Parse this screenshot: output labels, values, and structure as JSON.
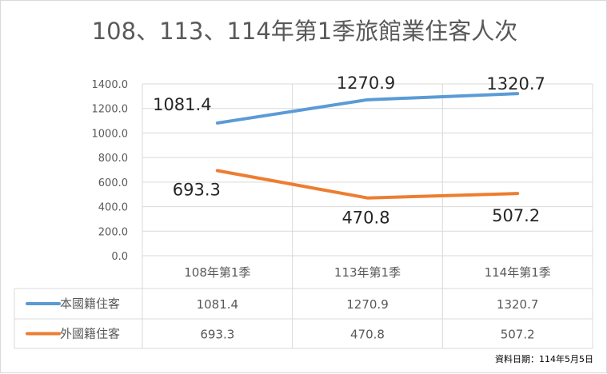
{
  "chart_data": {
    "type": "line",
    "title": "108、113、114年第1季旅館業住客人次",
    "categories": [
      "108年第1季",
      "113年第1季",
      "114年第1季"
    ],
    "series": [
      {
        "name": "本國籍住客",
        "values": [
          1081.4,
          1270.9,
          1320.7
        ],
        "color": "#5b9bd5"
      },
      {
        "name": "外國籍住客",
        "values": [
          693.3,
          470.8,
          507.2
        ],
        "color": "#ed7d31"
      }
    ],
    "ylim": [
      0,
      1400
    ],
    "yticks": [
      "0.0",
      "200.0",
      "400.0",
      "600.0",
      "800.0",
      "1000.0",
      "1200.0",
      "1400.0"
    ],
    "data_labels": [
      [
        "1081.4",
        "1270.9",
        "1320.7"
      ],
      [
        "693.3",
        "470.8",
        "507.2"
      ]
    ],
    "table_values": [
      [
        "1081.4",
        "1270.9",
        "1320.7"
      ],
      [
        "693.3",
        "470.8",
        "507.2"
      ]
    ],
    "grid": true,
    "legend": "data-table"
  },
  "source_note": "資料日期：114年5月5日"
}
